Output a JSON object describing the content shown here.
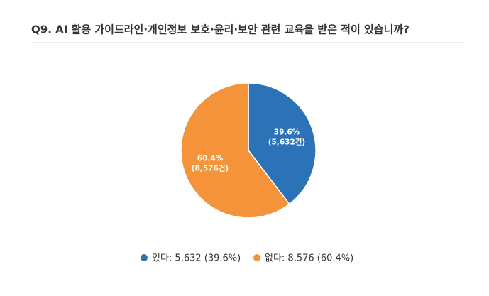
{
  "chart_data": {
    "type": "pie",
    "title": "Q9. AI 활용 가이드라인·개인정보 보호·윤리·보안 관련 교육을 받은 적이 있습니까?",
    "categories": [
      "있다",
      "없다"
    ],
    "values": [
      39.6,
      60.4
    ],
    "value_labels": [
      "39.6%",
      "60.4%"
    ],
    "count_labels": [
      "(5,632건)",
      "(8,576건)"
    ],
    "legend_labels": [
      "있다: 5,632 (39.6%)",
      "없다: 8,576 (60.4%)"
    ],
    "colors": [
      "#2b73b6",
      "#f5933a"
    ],
    "legend": "bottom"
  }
}
